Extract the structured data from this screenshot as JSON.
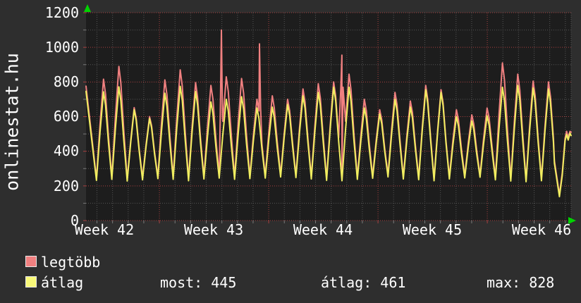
{
  "vertical_title": "onlinestat.hu",
  "colors": {
    "page_bg": "#2e2e2e",
    "plot_bg": "#1d1d1d",
    "grid_major": "#a84040",
    "grid_minor": "#545454",
    "tick_minor": "#7a7a7a",
    "arrow_green": "#00d400",
    "text": "#ffffff",
    "legtobb_line": "#f08080",
    "atlag_line": "#f0ee60",
    "legtobb_swatch": "#f08080",
    "atlag_swatch": "#f8f878"
  },
  "y_axis": {
    "labels": [
      "1200",
      "1000",
      "800",
      "600",
      "400",
      "200",
      "0"
    ]
  },
  "x_axis": {
    "labels": [
      "Week 42",
      "Week 43",
      "Week 44",
      "Week 45",
      "Week 46"
    ]
  },
  "legend": {
    "row1_label": "legtöbb",
    "row2_label": "átlag"
  },
  "stats": {
    "most_text": "most: 445",
    "atlag_text": "átlag: 461",
    "max_text": "max: 828"
  },
  "chart_data": {
    "type": "line",
    "title": "onlinestat.hu",
    "ylabel": "",
    "xlabel": "",
    "ylim": [
      0,
      1200
    ],
    "yticks": [
      0,
      200,
      400,
      600,
      800,
      1000,
      1200
    ],
    "y_minor_step": 100,
    "x_tick_labels": [
      "Week 42",
      "Week 43",
      "Week 44",
      "Week 45",
      "Week 46"
    ],
    "x_span_days": 31.07,
    "week_boundaries_day": [
      4.7,
      11.7,
      18.7,
      25.7
    ],
    "grid": "dotted; minor: 100 units / 1 day, major: 200 units / 1 week",
    "legend_position": "bottom-left",
    "current": {
      "most": 445,
      "atlag": 461,
      "max": 828
    },
    "peak_day_of_first_cycle": 1.12,
    "cycle_length_days": 0.9827,
    "series": [
      {
        "name": "legtöbb",
        "color": "#f08080",
        "start_value": 776,
        "trough_offset": 12,
        "daily_peaks": [
          816,
          890,
          652,
          600,
          812,
          870,
          796,
          780,
          830,
          820,
          700,
          720,
          700,
          760,
          790,
          800,
          845,
          700,
          640,
          740,
          690,
          780,
          755,
          640,
          610,
          650,
          910,
          845,
          805,
          800
        ],
        "spikes": [
          {
            "day": 8.67,
            "value": 1100,
            "base": 600
          },
          {
            "day": 11.11,
            "value": 1020,
            "base": 650
          },
          {
            "day": 16.39,
            "value": 955,
            "base": 770
          }
        ],
        "tail": [
          [
            30.0,
            345
          ],
          [
            30.32,
            150
          ],
          [
            30.5,
            275
          ],
          [
            30.68,
            475
          ],
          [
            30.78,
            515
          ],
          [
            30.88,
            480
          ],
          [
            31.0,
            515
          ],
          [
            31.07,
            510
          ]
        ]
      },
      {
        "name": "átlag",
        "color": "#f0ee60",
        "start_value": 746,
        "trough_offset": 0,
        "daily_peaks": [
          743,
          772,
          640,
          588,
          735,
          775,
          745,
          685,
          700,
          715,
          650,
          655,
          670,
          720,
          740,
          770,
          770,
          650,
          615,
          700,
          655,
          755,
          740,
          600,
          575,
          605,
          770,
          780,
          765,
          760
        ],
        "spikes": [],
        "tail": [
          [
            30.0,
            330
          ],
          [
            30.32,
            138
          ],
          [
            30.5,
            260
          ],
          [
            30.68,
            460
          ],
          [
            30.78,
            497
          ],
          [
            30.88,
            465
          ],
          [
            31.0,
            505
          ],
          [
            31.07,
            490
          ]
        ]
      }
    ],
    "daily_troughs": [
      232,
      238,
      228,
      235,
      242,
      238,
      230,
      240,
      245,
      238,
      242,
      245,
      252,
      248,
      240,
      232,
      230,
      238,
      244,
      252,
      240,
      236,
      230,
      240,
      246,
      250,
      235,
      228,
      224,
      230
    ]
  }
}
